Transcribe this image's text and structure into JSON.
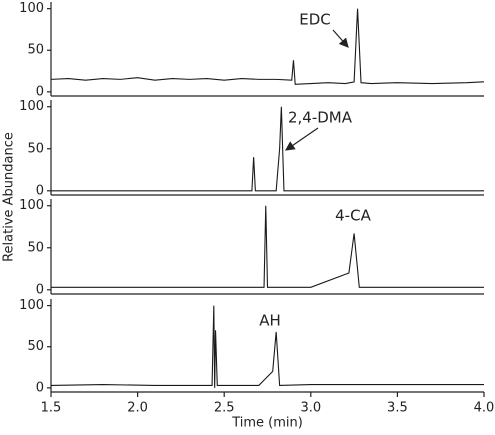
{
  "chart_data": [
    {
      "type": "line",
      "annotation": "EDC",
      "ylabel": "Relative Abundance",
      "xlim": [
        1.5,
        4.0
      ],
      "ylim": [
        -5,
        108
      ],
      "yticks": [
        0,
        50,
        100
      ],
      "series": [
        {
          "color": "#1a1a1a",
          "x": [
            1.5,
            1.6,
            1.7,
            1.8,
            1.9,
            2.0,
            2.1,
            2.2,
            2.3,
            2.4,
            2.5,
            2.6,
            2.7,
            2.8,
            2.89,
            2.9,
            2.91,
            3.0,
            3.1,
            3.2,
            3.25,
            3.27,
            3.29,
            3.35,
            3.5,
            3.7,
            3.9,
            4.0
          ],
          "values": [
            15,
            16,
            14,
            16,
            15,
            17,
            14,
            16,
            15,
            16,
            14,
            16,
            15,
            15,
            14,
            38,
            9,
            10,
            11,
            10,
            12,
            100,
            11,
            10,
            11,
            10,
            11,
            12
          ]
        }
      ]
    },
    {
      "type": "line",
      "annotation": "2,4-DMA",
      "xlim": [
        1.5,
        4.0
      ],
      "ylim": [
        -5,
        108
      ],
      "yticks": [
        0,
        50,
        100
      ],
      "series": [
        {
          "color": "#1a1a1a",
          "x": [
            1.5,
            2.0,
            2.5,
            2.66,
            2.67,
            2.68,
            2.8,
            2.82,
            2.83,
            2.845,
            2.9,
            3.5,
            4.0
          ],
          "values": [
            0,
            0,
            0,
            0,
            40,
            0,
            0,
            50,
            100,
            0,
            0,
            0,
            0
          ]
        }
      ]
    },
    {
      "type": "line",
      "annotation": "4-CA",
      "xlim": [
        1.5,
        4.0
      ],
      "ylim": [
        -5,
        108
      ],
      "yticks": [
        0,
        50,
        100
      ],
      "series": [
        {
          "color": "#1a1a1a",
          "x": [
            1.5,
            2.0,
            2.5,
            2.73,
            2.74,
            2.75,
            3.0,
            3.22,
            3.25,
            3.28,
            3.5,
            4.0
          ],
          "values": [
            3,
            3,
            3,
            3,
            100,
            3,
            3,
            20,
            67,
            3,
            3,
            3
          ]
        }
      ]
    },
    {
      "type": "line",
      "annotation": "AH",
      "xlabel": "Time (min)",
      "xlim": [
        1.5,
        4.0
      ],
      "ylim": [
        -5,
        108
      ],
      "yticks": [
        0,
        50,
        100
      ],
      "xticks": [
        1.5,
        {
          "value": 2,
          "label": "2.0"
        },
        2.5,
        {
          "value": 3,
          "label": "3.0"
        },
        3.5,
        {
          "value": 4,
          "label": "4.0"
        }
      ],
      "series": [
        {
          "color": "#1a1a1a",
          "x": [
            1.5,
            1.8,
            2.1,
            2.43,
            2.44,
            2.445,
            2.45,
            2.46,
            2.7,
            2.78,
            2.8,
            2.82,
            3.0,
            3.5,
            4.0
          ],
          "values": [
            3,
            4,
            3,
            3,
            100,
            0,
            70,
            3,
            3,
            20,
            68,
            3,
            4,
            4,
            4
          ]
        }
      ]
    }
  ]
}
